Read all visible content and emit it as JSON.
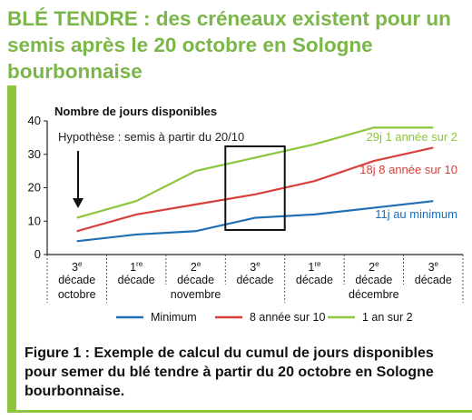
{
  "headline": "BLÉ TENDRE : des créneaux existent pour un semis après le 20 octobre en Sologne bourbonnaise",
  "caption": "Figure 1 : Exemple de calcul du cumul de jours disponibles pour semer du blé tendre à partir du 20 octobre en Sologne bourbonnaise.",
  "colors": {
    "accent_green": "#7ab648",
    "minimum": "#1f6fb4",
    "eight_of_ten": "#d9403b",
    "one_of_two": "#8cc63f"
  },
  "chart_data": {
    "type": "line",
    "ylabel": "Nombre de jours disponibles",
    "ylim": [
      0,
      40
    ],
    "yticks": [
      "0",
      "10",
      "20",
      "30",
      "40"
    ],
    "categories": [
      {
        "num": "3",
        "sup": "e",
        "word": "décade"
      },
      {
        "num": "1",
        "sup": "re",
        "word": "décade"
      },
      {
        "num": "2",
        "sup": "e",
        "word": "décade"
      },
      {
        "num": "3",
        "sup": "e",
        "word": "décade"
      },
      {
        "num": "1",
        "sup": "re",
        "word": "décade"
      },
      {
        "num": "2",
        "sup": "e",
        "word": "décade"
      },
      {
        "num": "3",
        "sup": "e",
        "word": "décade"
      }
    ],
    "months": [
      {
        "label": "octobre",
        "span": [
          0,
          0
        ]
      },
      {
        "label": "novembre",
        "span": [
          1,
          3
        ]
      },
      {
        "label": "décembre",
        "span": [
          4,
          6
        ]
      }
    ],
    "series": [
      {
        "name": "Minimum",
        "color": "#1f6fb4",
        "values": [
          4,
          6,
          7,
          11,
          12,
          14,
          16
        ],
        "end_label": "11j au minimum"
      },
      {
        "name": "8 année sur 10",
        "color": "#d9403b",
        "values": [
          7,
          12,
          15,
          18,
          22,
          28,
          32
        ],
        "end_label": "18j 8 année sur 10"
      },
      {
        "name": "1 an sur 2",
        "color": "#8cc63f",
        "values": [
          11,
          16,
          25,
          29,
          33,
          38,
          38
        ],
        "end_label": "29j 1 année sur 2"
      }
    ],
    "annotation": "Hypothèse : semis à partir du 20/10",
    "highlight_category": 3,
    "grid": false,
    "legend_position": "bottom"
  }
}
